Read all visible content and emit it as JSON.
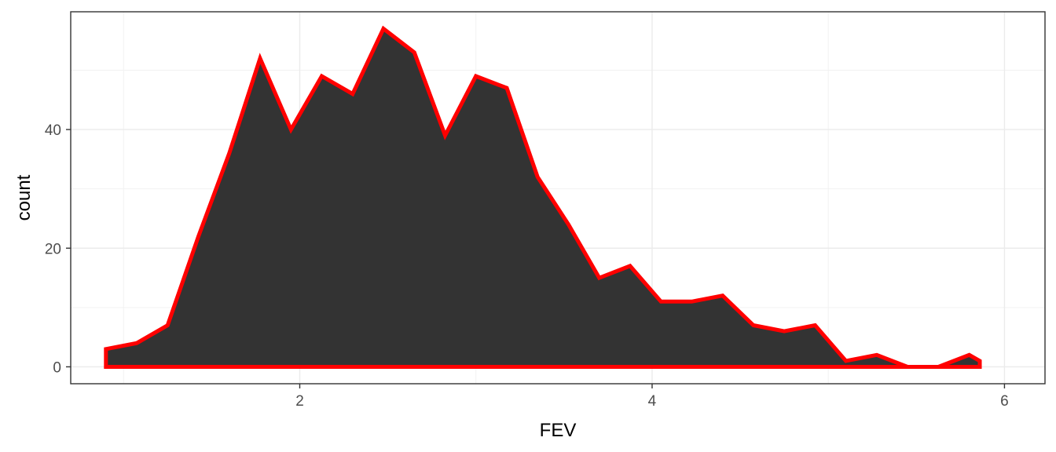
{
  "chart_data": {
    "type": "area",
    "title": "",
    "xlabel": "FEV",
    "ylabel": "count",
    "xlim": [
      0.7,
      6.23
    ],
    "ylim": [
      -2.85,
      59.85
    ],
    "x_ticks": [
      2,
      4,
      6
    ],
    "y_ticks": [
      0,
      20,
      40
    ],
    "grid": true,
    "legend": "none",
    "fill_color": "#333333",
    "line_color": "#ff0000",
    "x": [
      0.9,
      1.075,
      1.25,
      1.425,
      1.6,
      1.775,
      1.95,
      2.125,
      2.3,
      2.475,
      2.65,
      2.825,
      3.0,
      3.175,
      3.35,
      3.525,
      3.7,
      3.875,
      4.05,
      4.225,
      4.4,
      4.575,
      4.75,
      4.925,
      5.1,
      5.275,
      5.45,
      5.625,
      5.8,
      5.86
    ],
    "values": [
      3,
      4,
      7,
      22,
      36,
      52,
      40,
      49,
      46,
      57,
      53,
      39,
      49,
      47,
      32,
      24,
      15,
      17,
      11,
      11,
      12,
      7,
      6,
      7,
      1,
      2,
      0,
      0,
      2,
      1
    ]
  }
}
